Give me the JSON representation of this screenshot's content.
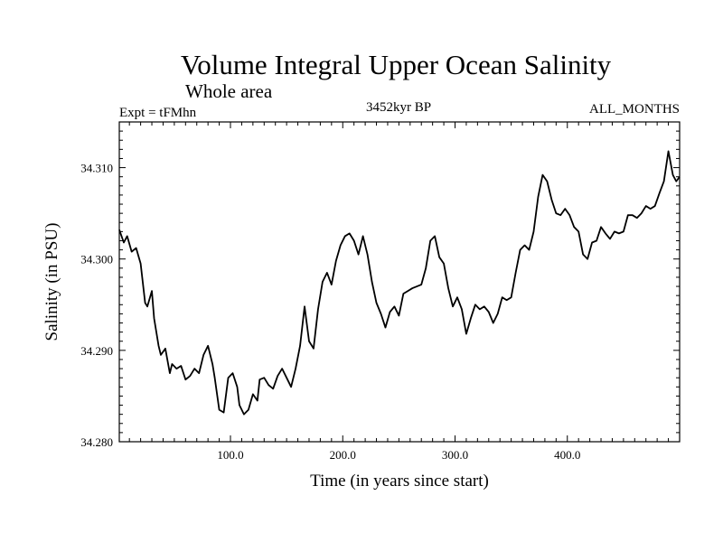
{
  "chart_data": {
    "type": "line",
    "title": "Volume Integral Upper Ocean Salinity",
    "subtitle": "Whole area",
    "header_left": "Expt = tFMhn",
    "header_center": "3452kyr BP",
    "header_right": "ALL_MONTHS",
    "xlabel": "Time (in years since start)",
    "ylabel": "Salinity (in PSU)",
    "xlim": [
      1,
      500
    ],
    "ylim": [
      34.28,
      34.315
    ],
    "xticks": [
      {
        "value": 100,
        "label": "100.0"
      },
      {
        "value": 200,
        "label": "200.0"
      },
      {
        "value": 300,
        "label": "300.0"
      },
      {
        "value": 400,
        "label": "400.0"
      }
    ],
    "yticks": [
      {
        "value": 34.28,
        "label": "34.280"
      },
      {
        "value": 34.29,
        "label": "34.290"
      },
      {
        "value": 34.3,
        "label": "34.300"
      },
      {
        "value": 34.31,
        "label": "34.310"
      }
    ],
    "grid": false,
    "series": [
      {
        "name": "Salinity",
        "color": "#000000",
        "x": [
          1,
          5,
          8,
          12,
          16,
          20,
          24,
          26,
          30,
          32,
          36,
          38,
          42,
          46,
          48,
          52,
          56,
          60,
          64,
          68,
          72,
          76,
          80,
          84,
          86,
          90,
          94,
          98,
          102,
          106,
          108,
          112,
          116,
          120,
          124,
          126,
          130,
          134,
          138,
          142,
          146,
          150,
          154,
          158,
          162,
          166,
          170,
          174,
          178,
          182,
          186,
          190,
          194,
          198,
          202,
          206,
          210,
          214,
          218,
          222,
          226,
          230,
          234,
          238,
          242,
          246,
          250,
          254,
          258,
          262,
          266,
          270,
          274,
          278,
          282,
          286,
          290,
          294,
          298,
          302,
          306,
          310,
          314,
          318,
          322,
          326,
          330,
          334,
          338,
          342,
          346,
          350,
          354,
          358,
          362,
          366,
          370,
          374,
          378,
          382,
          386,
          390,
          394,
          398,
          402,
          406,
          410,
          414,
          418,
          422,
          426,
          430,
          434,
          438,
          442,
          446,
          450,
          454,
          458,
          462,
          466,
          470,
          474,
          478,
          482,
          486,
          490,
          494,
          497,
          500
        ],
        "values": [
          34.3032,
          34.3018,
          34.3025,
          34.3008,
          34.3012,
          34.2995,
          34.2952,
          34.2948,
          34.2965,
          34.2935,
          34.2905,
          34.2895,
          34.2902,
          34.2875,
          34.2885,
          34.288,
          34.2883,
          34.2868,
          34.2872,
          34.288,
          34.2875,
          34.2895,
          34.2905,
          34.2885,
          34.287,
          34.2835,
          34.2832,
          34.287,
          34.2875,
          34.286,
          34.284,
          34.283,
          34.2835,
          34.2852,
          34.2845,
          34.2868,
          34.287,
          34.2862,
          34.2858,
          34.2872,
          34.288,
          34.287,
          34.286,
          34.288,
          34.2905,
          34.2948,
          34.291,
          34.2902,
          34.2945,
          34.2975,
          34.2985,
          34.2972,
          34.2998,
          34.3015,
          34.3025,
          34.3028,
          34.302,
          34.3005,
          34.3025,
          34.3005,
          34.2975,
          34.2952,
          34.294,
          34.2925,
          34.2942,
          34.2948,
          34.2938,
          34.2962,
          34.2965,
          34.2968,
          34.297,
          34.2972,
          34.299,
          34.302,
          34.3025,
          34.3002,
          34.2995,
          34.2968,
          34.2948,
          34.2958,
          34.2945,
          34.2918,
          34.2935,
          34.295,
          34.2945,
          34.2948,
          34.2942,
          34.293,
          34.294,
          34.2958,
          34.2955,
          34.2958,
          34.2985,
          34.301,
          34.3015,
          34.301,
          34.303,
          34.3068,
          34.3092,
          34.3085,
          34.3065,
          34.305,
          34.3048,
          34.3055,
          34.3048,
          34.3035,
          34.303,
          34.3005,
          34.3,
          34.3018,
          34.302,
          34.3035,
          34.3028,
          34.3022,
          34.303,
          34.3028,
          34.303,
          34.3048,
          34.3048,
          34.3045,
          34.305,
          34.3058,
          34.3055,
          34.3058,
          34.3072,
          34.3085,
          34.3118,
          34.3092,
          34.3085,
          34.309
        ]
      }
    ]
  }
}
